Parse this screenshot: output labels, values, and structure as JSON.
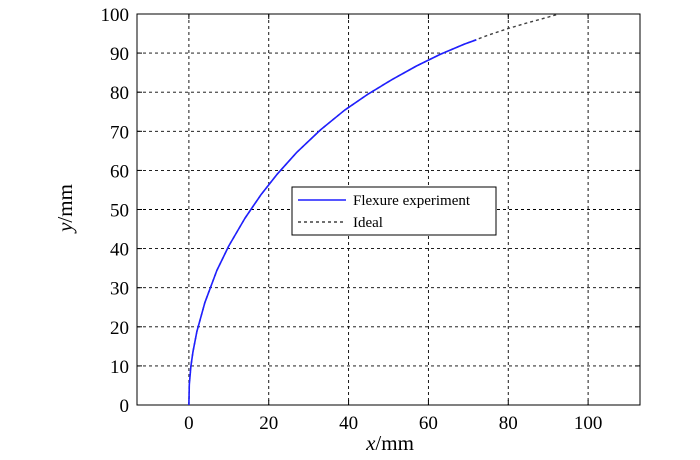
{
  "chart_data": {
    "type": "line",
    "xlabel_var": "x",
    "xlabel_unit": "/mm",
    "ylabel_var": "y",
    "ylabel_unit": "/mm",
    "xlim": [
      -13,
      113
    ],
    "ylim": [
      0,
      100
    ],
    "xticks": [
      0,
      20,
      40,
      60,
      80,
      100
    ],
    "yticks": [
      0,
      10,
      20,
      30,
      40,
      50,
      60,
      70,
      80,
      90,
      100
    ],
    "grid": true,
    "legend_position": "center",
    "series": [
      {
        "name": "Flexure experiment",
        "color": "#1f1fff",
        "style": "solid",
        "x": [
          0,
          0.1,
          0.5,
          1,
          2,
          4,
          7,
          10,
          14,
          18,
          22,
          27,
          33,
          39,
          45,
          51,
          57,
          63,
          69,
          72
        ],
        "y": [
          0,
          5.2,
          9.9,
          13.5,
          18.8,
          26.2,
          34.4,
          40.7,
          47.7,
          53.7,
          58.9,
          64.6,
          70.4,
          75.4,
          79.6,
          83.3,
          86.7,
          89.7,
          92.3,
          93.4
        ]
      },
      {
        "name": "Ideal",
        "color": "#404040",
        "style": "dashed",
        "x": [
          0,
          0.1,
          0.5,
          1,
          2,
          4,
          7,
          10,
          14,
          18,
          22,
          27,
          33,
          39,
          45,
          51,
          57,
          63,
          69,
          75,
          80,
          85,
          90,
          92
        ],
        "y": [
          0,
          5.2,
          9.9,
          13.5,
          18.8,
          26.2,
          34.4,
          40.7,
          47.7,
          53.7,
          58.9,
          64.6,
          70.4,
          75.4,
          79.6,
          83.3,
          86.7,
          89.7,
          92.3,
          94.6,
          96.3,
          97.8,
          99.2,
          99.8
        ]
      }
    ]
  }
}
